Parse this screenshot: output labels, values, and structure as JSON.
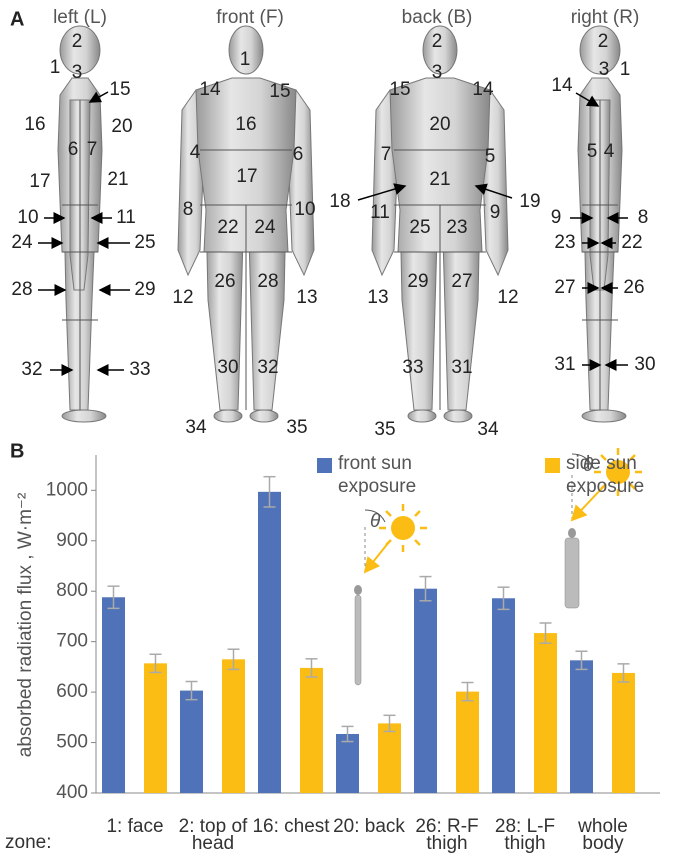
{
  "panel_a": {
    "label": "A",
    "views": [
      {
        "title": "left (L)",
        "zones": [
          "2",
          "1",
          "3",
          "15",
          "16",
          "20",
          "6",
          "7",
          "17",
          "21",
          "10",
          "11",
          "24",
          "25",
          "28",
          "29",
          "32",
          "33"
        ]
      },
      {
        "title": "front (F)",
        "zones": [
          "1",
          "14",
          "15",
          "16",
          "4",
          "6",
          "17",
          "8",
          "10",
          "22",
          "24",
          "26",
          "28",
          "12",
          "13",
          "30",
          "32",
          "34",
          "35"
        ]
      },
      {
        "title": "back (B)",
        "zones": [
          "2",
          "3",
          "15",
          "14",
          "20",
          "7",
          "5",
          "21",
          "18",
          "19",
          "11",
          "9",
          "25",
          "23",
          "29",
          "27",
          "13",
          "12",
          "33",
          "31",
          "35",
          "34"
        ]
      },
      {
        "title": "right (R)",
        "zones": [
          "2",
          "3",
          "1",
          "14",
          "5",
          "4",
          "9",
          "8",
          "23",
          "22",
          "27",
          "26",
          "31",
          "30"
        ]
      }
    ]
  },
  "chart_data": {
    "type": "bar",
    "panel_label": "B",
    "y_label": "absorbed radiation flux , W·m⁻²",
    "x_label": "zone:",
    "categories": [
      "1: face",
      "2: top of head",
      "16: chest",
      "20: back",
      "26: R-F thigh",
      "28: L-F thigh",
      "whole body"
    ],
    "series": [
      {
        "name": "front sun exposure",
        "color": "#4f72b8",
        "values": [
          788,
          603,
          997,
          517,
          805,
          786,
          663
        ],
        "errors": [
          22,
          18,
          30,
          15,
          24,
          22,
          18
        ]
      },
      {
        "name": "side sun exposure",
        "color": "#fbbd13",
        "values": [
          657,
          665,
          648,
          538,
          601,
          717,
          638
        ],
        "errors": [
          18,
          20,
          18,
          16,
          18,
          20,
          18
        ]
      }
    ],
    "ylim": [
      400,
      1070
    ],
    "yticks": [
      400,
      500,
      600,
      700,
      800,
      900,
      1000
    ],
    "angle_label": "θ"
  }
}
